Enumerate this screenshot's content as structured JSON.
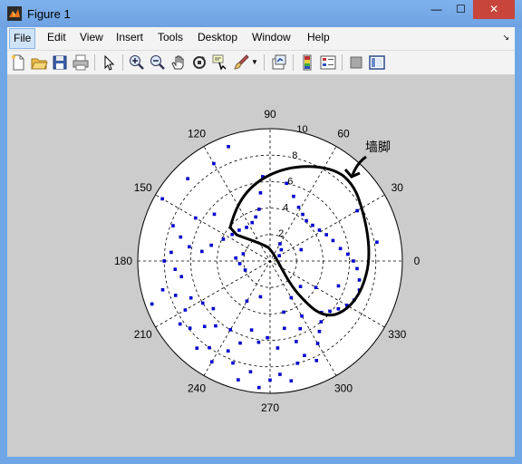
{
  "window": {
    "title": "Figure 1",
    "controls": {
      "minimize": "—",
      "maximize": "☐",
      "close": "✕"
    }
  },
  "menu": {
    "items": [
      "File",
      "Edit",
      "View",
      "Insert",
      "Tools",
      "Desktop",
      "Window",
      "Help"
    ],
    "overflow": "↘"
  },
  "toolbar": {
    "icons": [
      "new-figure-icon",
      "open-file-icon",
      "save-icon",
      "print-icon",
      "edit-plot-arrow-icon",
      "zoom-in-icon",
      "zoom-out-icon",
      "pan-hand-icon",
      "rotate-3d-icon",
      "data-cursor-icon",
      "brush-icon",
      "brush-dropdown-icon",
      "link-plot-icon",
      "colorbar-icon",
      "legend-icon",
      "hide-plot-tools-icon",
      "show-plot-tools-icon"
    ]
  },
  "chart_data": {
    "type": "scatter",
    "coordinate_system": "polar",
    "title": "",
    "angle_labels": [
      "0",
      "30",
      "60",
      "90",
      "120",
      "150",
      "180",
      "210",
      "240",
      "270",
      "300",
      "330"
    ],
    "radius_labels": [
      "2",
      "4",
      "6",
      "8",
      "10"
    ],
    "rlim": [
      0,
      10
    ],
    "grid": true,
    "marker_color": "#0000cc",
    "annotation": "墙脚",
    "series": [
      {
        "values_deg_r": [
          [
            95,
            6.4
          ],
          [
            98,
            5.2
          ],
          [
            102,
            4.0
          ],
          [
            108,
            3.5
          ],
          [
            115,
            3.2
          ],
          [
            125,
            3.1
          ],
          [
            135,
            3.3
          ],
          [
            145,
            3.5
          ],
          [
            155,
            3.9
          ],
          [
            165,
            4.6
          ],
          [
            172,
            5.2
          ],
          [
            78,
            6.0
          ],
          [
            70,
            5.2
          ],
          [
            62,
            4.6
          ],
          [
            55,
            4.3
          ],
          [
            48,
            4.1
          ],
          [
            40,
            4.2
          ],
          [
            32,
            4.4
          ],
          [
            25,
            4.7
          ],
          [
            18,
            5.0
          ],
          [
            10,
            5.4
          ],
          [
            5,
            5.9
          ],
          [
            0,
            6.3
          ],
          [
            -5,
            6.6
          ],
          [
            -12,
            6.9
          ],
          [
            -18,
            7.1
          ],
          [
            -25,
            7.0
          ],
          [
            -30,
            6.7
          ],
          [
            -35,
            6.3
          ],
          [
            -40,
            5.9
          ],
          [
            60,
            1.5
          ],
          [
            45,
            1.2
          ],
          [
            30,
            0.8
          ],
          [
            200,
            2.0
          ],
          [
            185,
            2.3
          ],
          [
            175,
            2.6
          ],
          [
            165,
            2.1
          ],
          [
            140,
            5.5
          ],
          [
            150,
            6.5
          ],
          [
            160,
            7.8
          ],
          [
            165,
            7.0
          ],
          [
            170,
            6.2
          ],
          [
            175,
            7.5
          ],
          [
            180,
            8.0
          ],
          [
            185,
            7.2
          ],
          [
            190,
            6.8
          ],
          [
            195,
            8.4
          ],
          [
            200,
            7.6
          ],
          [
            205,
            6.6
          ],
          [
            210,
            7.4
          ],
          [
            215,
            8.3
          ],
          [
            220,
            7.9
          ],
          [
            225,
            7.0
          ],
          [
            230,
            8.6
          ],
          [
            235,
            8.0
          ],
          [
            240,
            8.8
          ],
          [
            245,
            7.5
          ],
          [
            250,
            8.2
          ],
          [
            255,
            9.3
          ],
          [
            260,
            8.5
          ],
          [
            265,
            9.6
          ],
          [
            270,
            9.0
          ],
          [
            275,
            8.6
          ],
          [
            280,
            9.2
          ],
          [
            285,
            8.0
          ],
          [
            290,
            7.6
          ],
          [
            295,
            8.3
          ],
          [
            300,
            7.2
          ],
          [
            305,
            6.5
          ],
          [
            310,
            6.0
          ],
          [
            315,
            5.5
          ],
          [
            230,
            6.4
          ],
          [
            240,
            6.0
          ],
          [
            250,
            6.6
          ],
          [
            255,
            5.4
          ],
          [
            262,
            6.2
          ],
          [
            268,
            5.8
          ],
          [
            275,
            6.6
          ],
          [
            282,
            5.2
          ],
          [
            288,
            6.4
          ],
          [
            294,
            5.6
          ],
          [
            300,
            4.8
          ],
          [
            220,
            5.6
          ],
          [
            212,
            6.0
          ],
          [
            120,
            8.5
          ],
          [
            110,
            9.2
          ],
          [
            135,
            8.8
          ],
          [
            150,
            9.4
          ],
          [
            200,
            9.5
          ],
          [
            320,
            3.0
          ],
          [
            330,
            4.0
          ],
          [
            340,
            5.5
          ],
          [
            10,
            8.2
          ],
          [
            30,
            7.6
          ],
          [
            20,
            2.5
          ],
          [
            240,
            3.5
          ],
          [
            255,
            2.8
          ],
          [
            285,
            4.0
          ],
          [
            300,
            3.2
          ]
        ]
      }
    ]
  }
}
